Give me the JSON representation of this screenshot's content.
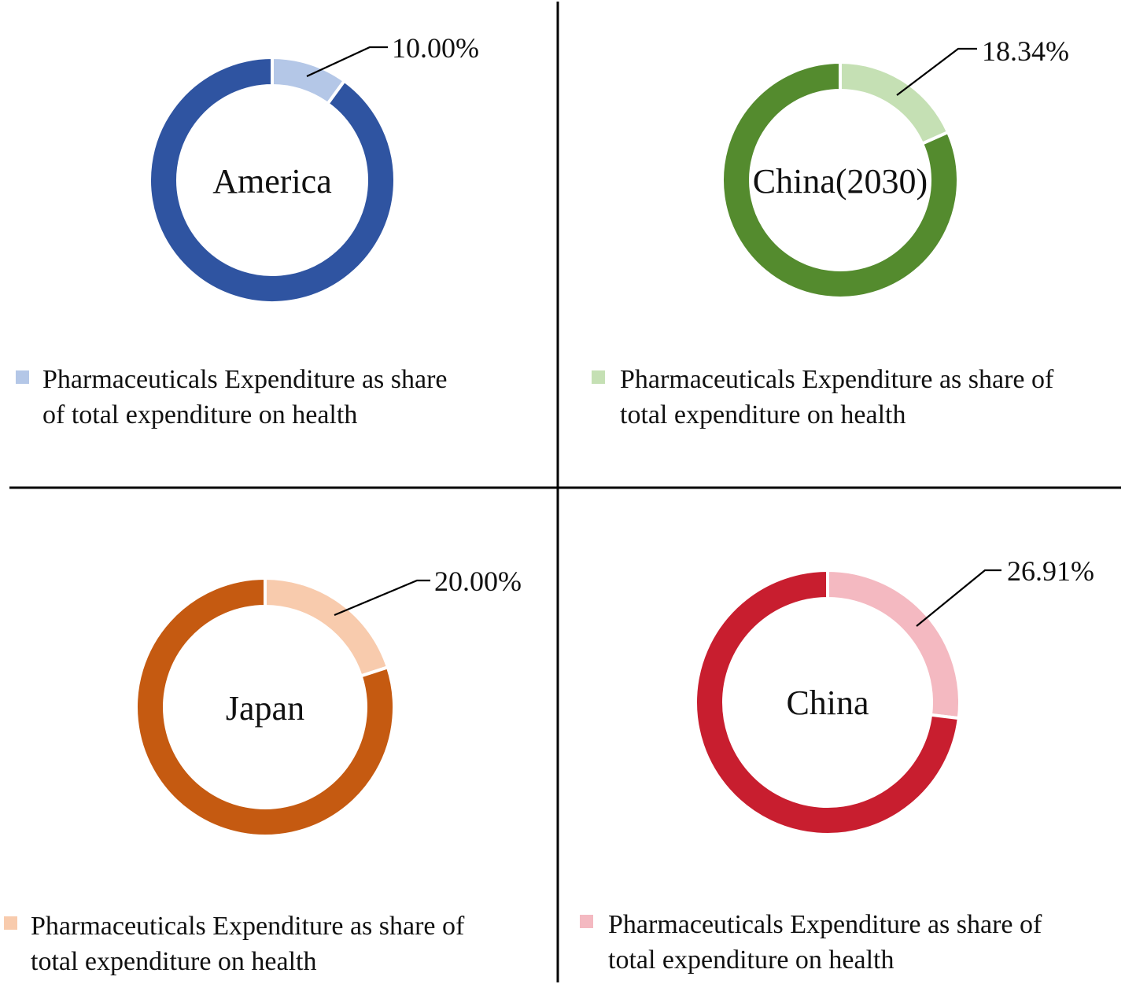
{
  "chart_data": [
    {
      "type": "pie",
      "center_label": "America",
      "categories": [
        "Pharmaceuticals Expenditure as share of total expenditure on health",
        ""
      ],
      "values": [
        10.0,
        90.0
      ],
      "value_label": "10.00%",
      "legend": [
        "Pharmaceuticals Expenditure as share",
        "of total expenditure on health"
      ],
      "colors": {
        "highlight": "#b4c7e7",
        "rest": "#2f54a1"
      }
    },
    {
      "type": "pie",
      "center_label": "China(2030)",
      "categories": [
        "Pharmaceuticals Expenditure as share of total expenditure on health",
        ""
      ],
      "values": [
        18.34,
        81.66
      ],
      "value_label": "18.34%",
      "legend": [
        "Pharmaceuticals Expenditure as share of",
        "total expenditure on health"
      ],
      "colors": {
        "highlight": "#c5e0b4",
        "rest": "#548b2e"
      }
    },
    {
      "type": "pie",
      "center_label": "Japan",
      "categories": [
        "Pharmaceuticals Expenditure as share of total expenditure on health",
        ""
      ],
      "values": [
        20.0,
        80.0
      ],
      "value_label": "20.00%",
      "legend": [
        "Pharmaceuticals Expenditure as share of",
        "total expenditure on health"
      ],
      "colors": {
        "highlight": "#f8cbad",
        "rest": "#c55a11"
      }
    },
    {
      "type": "pie",
      "center_label": "China",
      "categories": [
        "Pharmaceuticals Expenditure as share of total expenditure on health",
        ""
      ],
      "values": [
        26.91,
        73.09
      ],
      "value_label": "26.91%",
      "legend": [
        "Pharmaceuticals Expenditure as share of",
        "total expenditure on health"
      ],
      "colors": {
        "highlight": "#f4b9c1",
        "rest": "#c81e2f"
      }
    }
  ],
  "divider_color": "#000000"
}
